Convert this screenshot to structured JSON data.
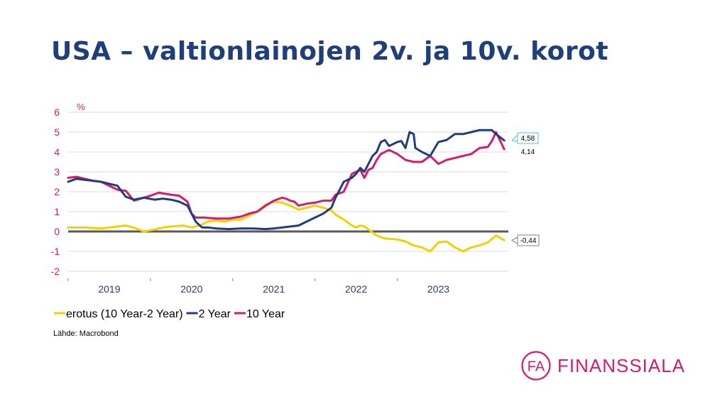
{
  "slide": {
    "title": "USA – valtionlainojen 2v. ja 10v. korot",
    "source": "Lähde: Macrobond"
  },
  "brand": {
    "initials": "FA",
    "name": "FINANSSIALA",
    "color": "#d7196f"
  },
  "chart_data": {
    "type": "line",
    "title": "",
    "xlabel": "",
    "ylabel": "%",
    "ylim": [
      -2,
      6
    ],
    "yticks": [
      6,
      5,
      4,
      3,
      2,
      1,
      0,
      -1,
      -2
    ],
    "xlim": [
      2018.5,
      2023.85
    ],
    "x_tick_labels": [
      "2019",
      "2020",
      "2021",
      "2022",
      "2023"
    ],
    "grid": true,
    "legend_position": "bottom-left",
    "series": [
      {
        "name": "erotus (10 Year-2 Year)",
        "color": "#f5d000",
        "x": [
          2018.5,
          2018.7,
          2018.9,
          2019.0,
          2019.1,
          2019.2,
          2019.3,
          2019.42,
          2019.55,
          2019.65,
          2019.75,
          2019.9,
          2020.0,
          2020.1,
          2020.15,
          2020.2,
          2020.3,
          2020.4,
          2020.5,
          2020.6,
          2020.7,
          2020.8,
          2020.9,
          2021.0,
          2021.1,
          2021.2,
          2021.3,
          2021.4,
          2021.5,
          2021.6,
          2021.7,
          2021.75,
          2021.85,
          2021.95,
          2022.0,
          2022.05,
          2022.1,
          2022.15,
          2022.25,
          2022.35,
          2022.5,
          2022.6,
          2022.7,
          2022.8,
          2022.9,
          2023.0,
          2023.1,
          2023.2,
          2023.3,
          2023.4,
          2023.5,
          2023.6,
          2023.7,
          2023.8
        ],
        "values": [
          0.2,
          0.2,
          0.15,
          0.2,
          0.25,
          0.3,
          0.2,
          0.0,
          0.1,
          0.2,
          0.25,
          0.3,
          0.2,
          0.3,
          0.4,
          0.5,
          0.55,
          0.5,
          0.6,
          0.6,
          0.8,
          1.0,
          1.35,
          1.5,
          1.45,
          1.3,
          1.1,
          1.2,
          1.3,
          1.2,
          1.05,
          0.85,
          0.6,
          0.3,
          0.2,
          0.3,
          0.25,
          0.1,
          -0.2,
          -0.35,
          -0.4,
          -0.5,
          -0.7,
          -0.8,
          -1.0,
          -0.55,
          -0.5,
          -0.8,
          -1.0,
          -0.8,
          -0.7,
          -0.55,
          -0.2,
          -0.44
        ]
      },
      {
        "name": "2 Year",
        "color": "#1f3f7a",
        "x": [
          2018.5,
          2018.6,
          2018.7,
          2018.9,
          2019.0,
          2019.1,
          2019.2,
          2019.3,
          2019.42,
          2019.55,
          2019.65,
          2019.75,
          2019.85,
          2019.95,
          2020.05,
          2020.1,
          2020.13,
          2020.16,
          2020.2,
          2020.3,
          2020.45,
          2020.6,
          2020.75,
          2020.9,
          2021.0,
          2021.1,
          2021.2,
          2021.3,
          2021.4,
          2021.5,
          2021.6,
          2021.7,
          2021.75,
          2021.85,
          2021.95,
          2022.0,
          2022.05,
          2022.1,
          2022.15,
          2022.2,
          2022.25,
          2022.3,
          2022.35,
          2022.4,
          2022.5,
          2022.55,
          2022.6,
          2022.65,
          2022.7,
          2022.72,
          2022.8,
          2022.9,
          2023.0,
          2023.1,
          2023.2,
          2023.3,
          2023.4,
          2023.5,
          2023.6,
          2023.65,
          2023.7,
          2023.8
        ],
        "values": [
          2.5,
          2.65,
          2.6,
          2.5,
          2.4,
          2.3,
          1.75,
          1.6,
          1.7,
          1.6,
          1.65,
          1.6,
          1.5,
          1.3,
          0.5,
          0.3,
          0.2,
          0.2,
          0.2,
          0.15,
          0.12,
          0.15,
          0.15,
          0.12,
          0.15,
          0.2,
          0.25,
          0.3,
          0.5,
          0.7,
          0.9,
          1.2,
          1.7,
          2.5,
          2.7,
          2.9,
          3.2,
          3.0,
          3.4,
          3.8,
          4.0,
          4.5,
          4.6,
          4.3,
          4.5,
          4.55,
          4.2,
          5.0,
          4.9,
          4.2,
          4.0,
          3.8,
          4.5,
          4.6,
          4.9,
          4.9,
          5.0,
          5.1,
          5.1,
          5.1,
          4.9,
          4.58
        ]
      },
      {
        "name": "10 Year",
        "color": "#d7196f",
        "x": [
          2018.5,
          2018.6,
          2018.7,
          2018.8,
          2018.9,
          2019.0,
          2019.1,
          2019.2,
          2019.3,
          2019.42,
          2019.5,
          2019.6,
          2019.75,
          2019.85,
          2019.95,
          2020.0,
          2020.05,
          2020.1,
          2020.15,
          2020.3,
          2020.45,
          2020.6,
          2020.7,
          2020.8,
          2020.9,
          2021.0,
          2021.1,
          2021.15,
          2021.2,
          2021.25,
          2021.3,
          2021.35,
          2021.4,
          2021.5,
          2021.6,
          2021.7,
          2021.75,
          2021.85,
          2021.95,
          2022.0,
          2022.05,
          2022.1,
          2022.15,
          2022.2,
          2022.25,
          2022.3,
          2022.4,
          2022.5,
          2022.6,
          2022.7,
          2022.8,
          2022.9,
          2023.0,
          2023.1,
          2023.2,
          2023.3,
          2023.4,
          2023.5,
          2023.6,
          2023.65,
          2023.7,
          2023.8
        ],
        "values": [
          2.7,
          2.75,
          2.65,
          2.55,
          2.5,
          2.3,
          2.1,
          2.05,
          1.55,
          1.7,
          1.8,
          1.95,
          1.85,
          1.8,
          1.5,
          0.9,
          0.7,
          0.7,
          0.7,
          0.65,
          0.65,
          0.75,
          0.9,
          1.0,
          1.3,
          1.55,
          1.7,
          1.65,
          1.55,
          1.5,
          1.3,
          1.35,
          1.4,
          1.45,
          1.55,
          1.55,
          1.85,
          2.0,
          2.9,
          3.0,
          3.1,
          2.7,
          3.1,
          3.2,
          3.6,
          3.9,
          4.1,
          3.9,
          3.6,
          3.5,
          3.5,
          3.8,
          3.4,
          3.6,
          3.7,
          3.8,
          3.9,
          4.2,
          4.25,
          4.55,
          5.0,
          4.14
        ]
      }
    ],
    "end_labels": [
      {
        "series": "2 Year",
        "text": "4,58"
      },
      {
        "series": "10 Year",
        "text": "4,14"
      },
      {
        "series": "erotus (10 Year-2 Year)",
        "text": "-0,44"
      }
    ]
  }
}
